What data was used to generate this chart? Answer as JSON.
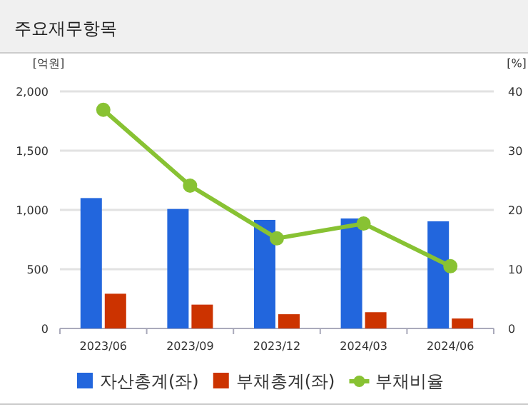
{
  "chart_data": {
    "type": "bar",
    "title": "주요재무항목",
    "ylabel": "[억원]",
    "y2label": "[%]",
    "categories": [
      "2023/06",
      "2023/09",
      "2023/12",
      "2024/03",
      "2024/06"
    ],
    "series": [
      {
        "name": "자산총계(좌)",
        "color": "#2266dd",
        "values": [
          1100,
          1008,
          916,
          928,
          904
        ]
      },
      {
        "name": "부채총계(좌)",
        "color": "#cc3300",
        "values": [
          293,
          201,
          120,
          137,
          84
        ]
      },
      {
        "name": "부채비율",
        "type": "line",
        "axis": "y2",
        "color": "#88c233",
        "marker": "circle",
        "values": [
          36.9,
          24.1,
          15.2,
          17.7,
          10.5
        ]
      }
    ],
    "ylim": [
      0,
      2000
    ],
    "yticks": [
      {
        "value": 0,
        "label": "0"
      },
      {
        "value": 500,
        "label": "500"
      },
      {
        "value": 1000,
        "label": "1,000"
      },
      {
        "value": 1500,
        "label": "1,500"
      },
      {
        "value": 2000,
        "label": "2,000"
      }
    ],
    "y2lim": [
      0,
      40
    ],
    "y2ticks": [
      0,
      10,
      20,
      30,
      40
    ],
    "grid": "y",
    "legend": "bottom"
  }
}
